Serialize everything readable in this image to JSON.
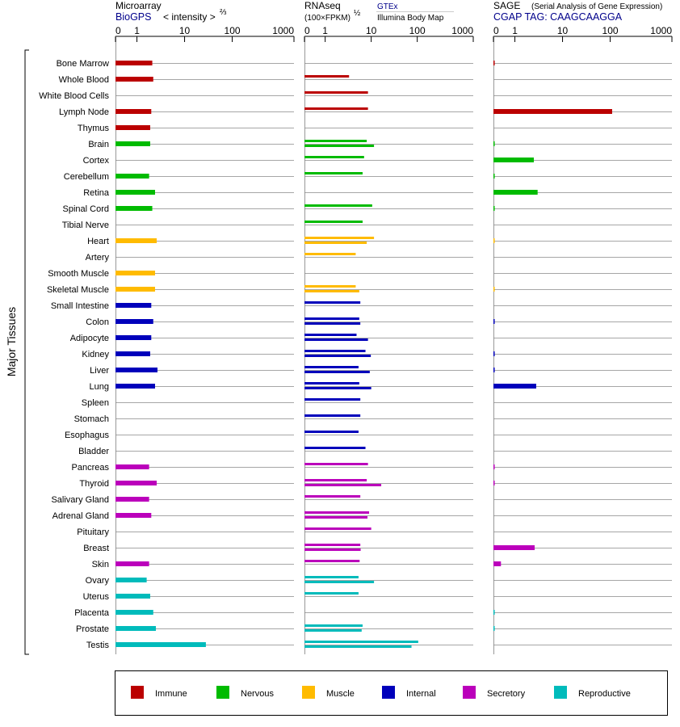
{
  "chart_data": {
    "type": "bar",
    "y_axis_title": "Major Tissues",
    "tissues": [
      {
        "name": "Bone Marrow",
        "group": "Immune"
      },
      {
        "name": "Whole Blood",
        "group": "Immune"
      },
      {
        "name": "White Blood Cells",
        "group": "Immune"
      },
      {
        "name": "Lymph Node",
        "group": "Immune"
      },
      {
        "name": "Thymus",
        "group": "Immune"
      },
      {
        "name": "Brain",
        "group": "Nervous"
      },
      {
        "name": "Cortex",
        "group": "Nervous"
      },
      {
        "name": "Cerebellum",
        "group": "Nervous"
      },
      {
        "name": "Retina",
        "group": "Nervous"
      },
      {
        "name": "Spinal Cord",
        "group": "Nervous"
      },
      {
        "name": "Tibial Nerve",
        "group": "Nervous"
      },
      {
        "name": "Heart",
        "group": "Muscle"
      },
      {
        "name": "Artery",
        "group": "Muscle"
      },
      {
        "name": "Smooth Muscle",
        "group": "Muscle"
      },
      {
        "name": "Skeletal Muscle",
        "group": "Muscle"
      },
      {
        "name": "Small Intestine",
        "group": "Internal"
      },
      {
        "name": "Colon",
        "group": "Internal"
      },
      {
        "name": "Adipocyte",
        "group": "Internal"
      },
      {
        "name": "Kidney",
        "group": "Internal"
      },
      {
        "name": "Liver",
        "group": "Internal"
      },
      {
        "name": "Lung",
        "group": "Internal"
      },
      {
        "name": "Spleen",
        "group": "Internal"
      },
      {
        "name": "Stomach",
        "group": "Internal"
      },
      {
        "name": "Esophagus",
        "group": "Internal"
      },
      {
        "name": "Bladder",
        "group": "Internal"
      },
      {
        "name": "Pancreas",
        "group": "Secretory"
      },
      {
        "name": "Thyroid",
        "group": "Secretory"
      },
      {
        "name": "Salivary Gland",
        "group": "Secretory"
      },
      {
        "name": "Adrenal Gland",
        "group": "Secretory"
      },
      {
        "name": "Pituitary",
        "group": "Secretory"
      },
      {
        "name": "Breast",
        "group": "Secretory"
      },
      {
        "name": "Skin",
        "group": "Secretory"
      },
      {
        "name": "Ovary",
        "group": "Reproductive"
      },
      {
        "name": "Uterus",
        "group": "Reproductive"
      },
      {
        "name": "Placenta",
        "group": "Reproductive"
      },
      {
        "name": "Prostate",
        "group": "Reproductive"
      },
      {
        "name": "Testis",
        "group": "Reproductive"
      }
    ],
    "groups": [
      {
        "name": "Immune",
        "color": "#bb0000"
      },
      {
        "name": "Nervous",
        "color": "#00bb00"
      },
      {
        "name": "Muscle",
        "color": "#ffbb00"
      },
      {
        "name": "Internal",
        "color": "#0000bb"
      },
      {
        "name": "Secretory",
        "color": "#bb00bb"
      },
      {
        "name": "Reproductive",
        "color": "#00bbbb"
      }
    ],
    "panels": [
      {
        "id": "microarray",
        "title": "Microarray",
        "source": "BioGPS",
        "unit_label": "< intensity >",
        "unit_exponent": "⅔",
        "axis_ticks": [
          "0",
          "1",
          "10",
          "100",
          "1000"
        ],
        "xlim": [
          0,
          1000
        ],
        "values": [
          [
            2.1
          ],
          [
            2.2
          ],
          [
            null
          ],
          [
            2.0
          ],
          [
            1.9
          ],
          [
            1.9
          ],
          [
            null
          ],
          [
            1.8
          ],
          [
            2.4
          ],
          [
            2.1
          ],
          [
            null
          ],
          [
            2.6
          ],
          [
            null
          ],
          [
            2.4
          ],
          [
            2.4
          ],
          [
            2.0
          ],
          [
            2.2
          ],
          [
            2.0
          ],
          [
            1.9
          ],
          [
            2.7
          ],
          [
            2.4
          ],
          [
            null
          ],
          [
            null
          ],
          [
            null
          ],
          [
            null
          ],
          [
            1.8
          ],
          [
            2.6
          ],
          [
            1.8
          ],
          [
            2.0
          ],
          [
            null
          ],
          [
            null
          ],
          [
            1.8
          ],
          [
            1.6
          ],
          [
            1.9
          ],
          [
            2.2
          ],
          [
            2.5
          ],
          [
            28
          ]
        ]
      },
      {
        "id": "rnaseq",
        "title": "RNAseq",
        "unit_label": "(100×FPKM)",
        "unit_exponent": "½",
        "sources": [
          "GTEx",
          "Illumina Body Map"
        ],
        "axis_ticks": [
          "0",
          "1",
          "10",
          "100",
          "1000"
        ],
        "xlim": [
          0,
          1000
        ],
        "values": [
          [
            null
          ],
          [
            3.3
          ],
          [
            8.5
          ],
          [
            8.5
          ],
          [
            null
          ],
          [
            8.0,
            11.5
          ],
          [
            7.0
          ],
          [
            6.5
          ],
          [
            null
          ],
          [
            10.5
          ],
          [
            6.5
          ],
          [
            11.5,
            8.0
          ],
          [
            4.6
          ],
          [
            null
          ],
          [
            4.6,
            5.5
          ],
          [
            5.8
          ],
          [
            5.5,
            5.8
          ],
          [
            4.8,
            8.5
          ],
          [
            7.5,
            9.8
          ],
          [
            5.3,
            9.3
          ],
          [
            5.5,
            10.0
          ],
          [
            5.8
          ],
          [
            5.8
          ],
          [
            5.3
          ],
          [
            7.5
          ],
          [
            8.5
          ],
          [
            8.0,
            16.5
          ],
          [
            5.8
          ],
          [
            9.0,
            8.3
          ],
          [
            10.0
          ],
          [
            5.8,
            5.9
          ],
          [
            5.6
          ],
          [
            5.3,
            11.5
          ],
          [
            5.3
          ],
          [
            null
          ],
          [
            6.5,
            6.2
          ],
          [
            105,
            75
          ]
        ]
      },
      {
        "id": "sage",
        "title": "SAGE",
        "subtitle": "(Serial Analysis of Gene Expression)",
        "tag_label": "CGAP TAG: CAAGCAAGGA",
        "axis_ticks": [
          "0",
          "1",
          "10",
          "100",
          "1000"
        ],
        "xlim": [
          0,
          1000
        ],
        "values": [
          [
            0.05
          ],
          [
            null
          ],
          [
            null
          ],
          [
            110
          ],
          [
            null
          ],
          [
            0.05
          ],
          [
            2.5
          ],
          [
            0.05
          ],
          [
            3.0
          ],
          [
            0.05
          ],
          [
            null
          ],
          [
            0.01
          ],
          [
            null
          ],
          [
            null
          ],
          [
            0.01
          ],
          [
            null
          ],
          [
            0.05
          ],
          [
            null
          ],
          [
            0.05
          ],
          [
            0.05
          ],
          [
            2.8
          ],
          [
            null
          ],
          [
            null
          ],
          [
            null
          ],
          [
            null
          ],
          [
            0.05
          ],
          [
            0.05
          ],
          [
            null
          ],
          [
            null
          ],
          [
            null
          ],
          [
            2.6
          ],
          [
            0.35
          ],
          [
            null
          ],
          [
            null
          ],
          [
            0.05
          ],
          [
            0.05
          ],
          [
            null
          ]
        ]
      }
    ]
  }
}
